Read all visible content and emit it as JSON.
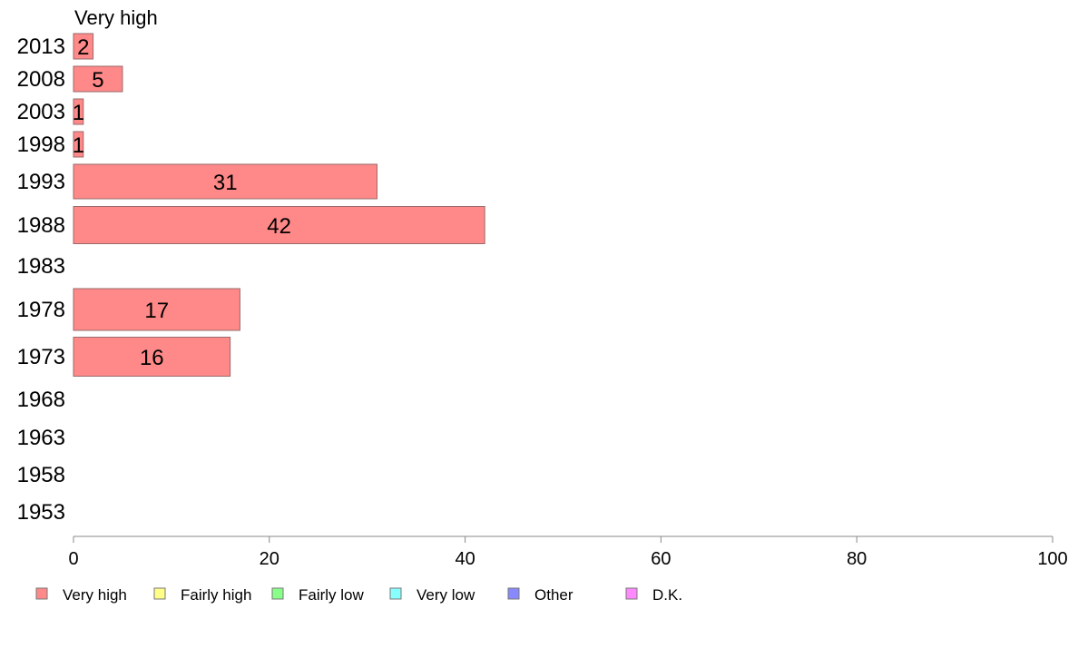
{
  "chart_data": {
    "type": "bar",
    "orientation": "horizontal",
    "title": "Very high",
    "categories": [
      "2013",
      "2008",
      "2003",
      "1998",
      "1993",
      "1988",
      "1983",
      "1978",
      "1973",
      "1968",
      "1963",
      "1958",
      "1953"
    ],
    "series": [
      {
        "name": "Very high",
        "color": "#ff8888",
        "values": [
          2,
          5,
          1,
          1,
          31,
          42,
          null,
          17,
          16,
          null,
          null,
          null,
          null
        ]
      }
    ],
    "data_labels": [
      "2",
      "5",
      "1",
      "1",
      "31",
      "42",
      "",
      "17",
      "16",
      "",
      "",
      "",
      ""
    ],
    "xlim": [
      0,
      100
    ],
    "xticks": [
      "0",
      "20",
      "40",
      "60",
      "80",
      "100"
    ],
    "grid": false,
    "legend": {
      "placement": "bottom",
      "entries": [
        {
          "name": "Very high",
          "color": "#ff8888"
        },
        {
          "name": "Fairly high",
          "color": "#ffff88"
        },
        {
          "name": "Fairly low",
          "color": "#88ff88"
        },
        {
          "name": "Very low",
          "color": "#88ffff"
        },
        {
          "name": "Other",
          "color": "#8888ff"
        },
        {
          "name": "D.K.",
          "color": "#ff88ff"
        }
      ]
    }
  }
}
